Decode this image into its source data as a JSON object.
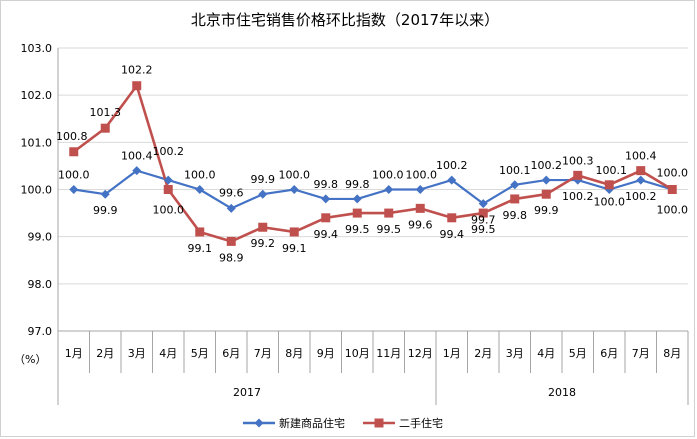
{
  "chart_data": {
    "type": "line",
    "title": "北京市住宅销售价格环比指数（2017年以来）",
    "unit_label": "（%）",
    "ylim": [
      97.0,
      103.0
    ],
    "yticks": [
      "103.0",
      "102.0",
      "101.0",
      "100.0",
      "99.0",
      "98.0",
      "97.0"
    ],
    "ytick_values": [
      103,
      102,
      101,
      100,
      99,
      98,
      97
    ],
    "categories": [
      "1月",
      "2月",
      "3月",
      "4月",
      "5月",
      "6月",
      "7月",
      "8月",
      "9月",
      "10月",
      "11月",
      "12月",
      "1月",
      "2月",
      "3月",
      "4月",
      "5月",
      "6月",
      "7月",
      "8月"
    ],
    "groups": [
      {
        "label": "2017",
        "start": 0,
        "count": 12
      },
      {
        "label": "2018",
        "start": 12,
        "count": 8
      }
    ],
    "series": [
      {
        "name": "新建商品住宅",
        "color": "#4472c4",
        "marker": "diamond",
        "values": [
          100.0,
          99.9,
          100.4,
          100.2,
          100.0,
          99.6,
          99.9,
          100.0,
          99.8,
          99.8,
          100.0,
          100.0,
          100.2,
          99.7,
          100.1,
          100.2,
          100.2,
          100.0,
          100.2,
          100.0
        ],
        "labels": [
          "100.0",
          "99.9",
          "100.4",
          "100.2",
          "100.0",
          "99.6",
          "99.9",
          "100.0",
          "99.8",
          "99.8",
          "100.0",
          "100.0",
          "100.2",
          "99.7",
          "100.1",
          "100.2",
          "100.2",
          "100.0",
          "100.2",
          "100.0"
        ]
      },
      {
        "name": "二手住宅",
        "color": "#c0504d",
        "marker": "square",
        "values": [
          100.8,
          101.3,
          102.2,
          100.0,
          99.1,
          98.9,
          99.2,
          99.1,
          99.4,
          99.5,
          99.5,
          99.6,
          99.4,
          99.5,
          99.8,
          99.9,
          100.3,
          100.1,
          100.4,
          100.0
        ],
        "labels": [
          "100.8",
          "101.3",
          "102.2",
          "100.0",
          "99.1",
          "98.9",
          "99.2",
          "99.1",
          "99.4",
          "99.5",
          "99.5",
          "99.6",
          "99.4",
          "99.5",
          "99.8",
          "99.9",
          "100.3",
          "100.1",
          "100.4",
          "100.0"
        ]
      }
    ],
    "legend_position": "bottom-center",
    "grid": true
  }
}
